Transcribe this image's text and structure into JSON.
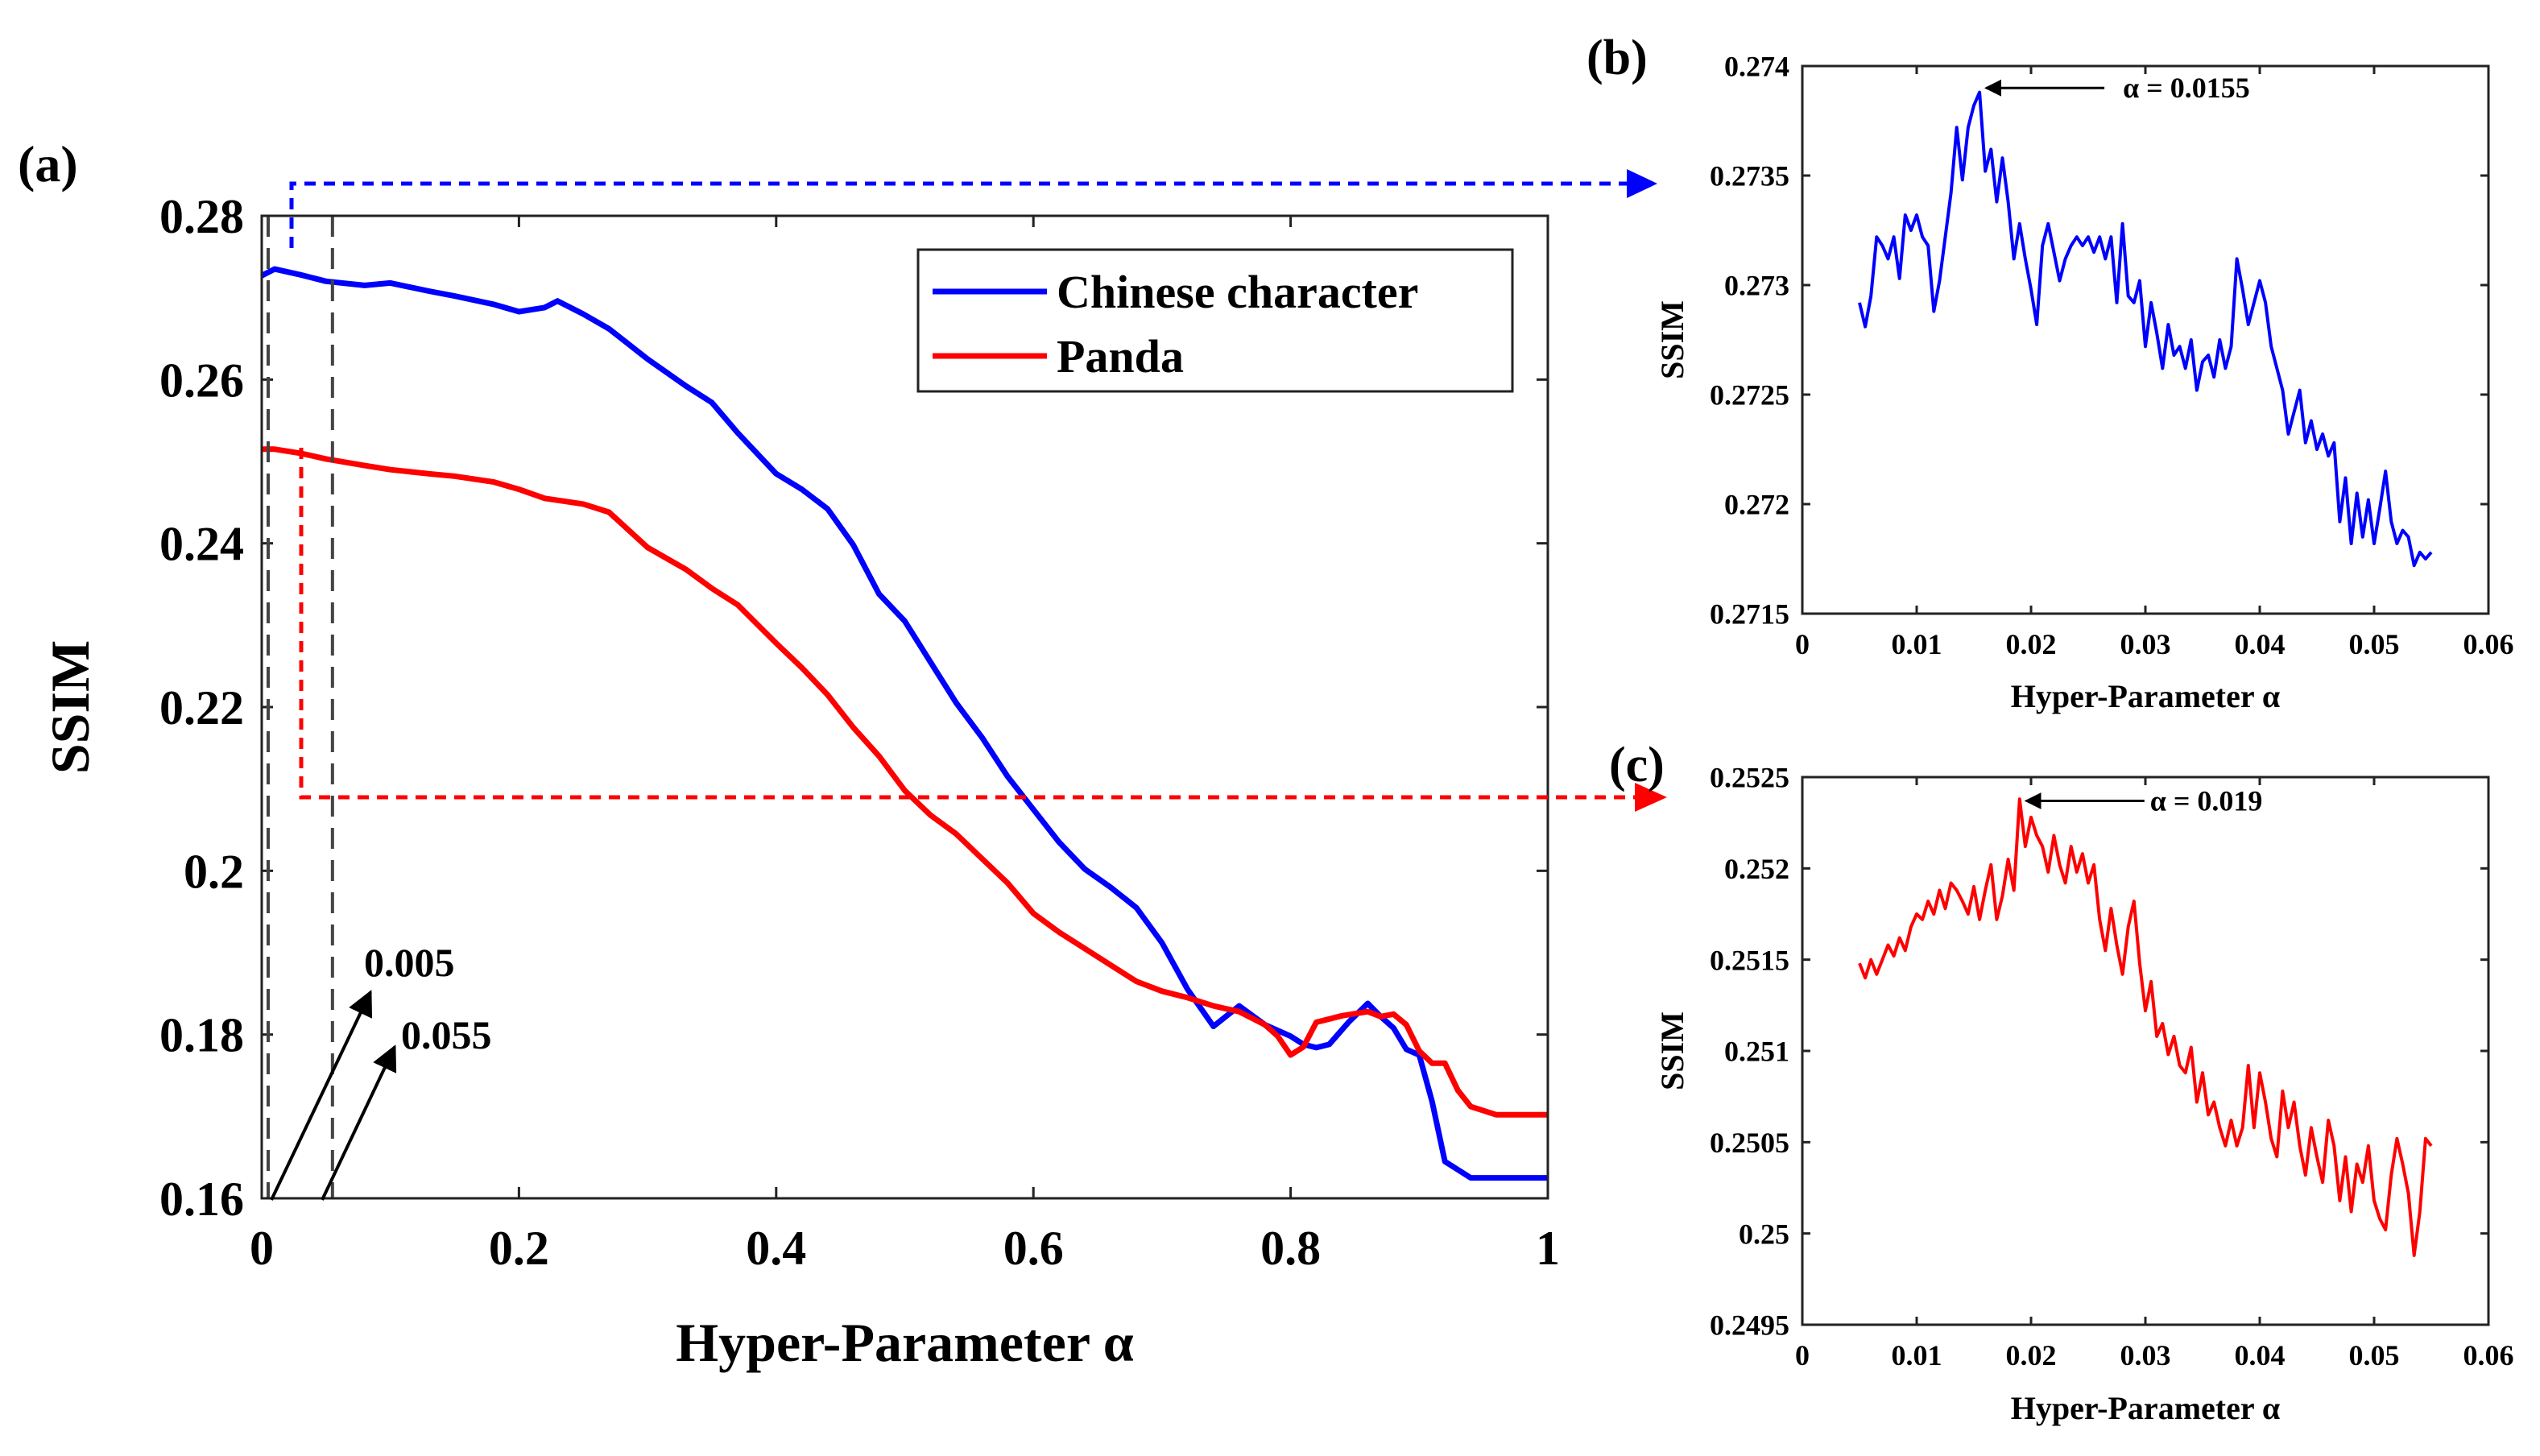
{
  "chart_data": [
    {
      "id": "a",
      "panel_label": "(a)",
      "type": "line",
      "title": "",
      "xlabel": "Hyper-Parameter α",
      "ylabel": "SSIM",
      "xlim": [
        0,
        1
      ],
      "ylim": [
        0.16,
        0.28
      ],
      "xticks": [
        0,
        0.2,
        0.4,
        0.6,
        0.8,
        1
      ],
      "xtick_labels": [
        "0",
        "0.2",
        "0.4",
        "0.6",
        "0.8",
        "1"
      ],
      "yticks": [
        0.16,
        0.18,
        0.2,
        0.22,
        0.24,
        0.26,
        0.28
      ],
      "ytick_labels": [
        "0.16",
        "0.18",
        "0.2",
        "0.22",
        "0.24",
        "0.26",
        "0.28"
      ],
      "grid": false,
      "legend_position": "top-right",
      "series": [
        {
          "name": "Chinese character",
          "color": "#0000ff",
          "x": [
            0,
            0.01,
            0.03,
            0.05,
            0.08,
            0.1,
            0.13,
            0.15,
            0.18,
            0.2,
            0.22,
            0.23,
            0.25,
            0.27,
            0.3,
            0.33,
            0.35,
            0.37,
            0.4,
            0.42,
            0.44,
            0.46,
            0.48,
            0.5,
            0.52,
            0.54,
            0.56,
            0.58,
            0.6,
            0.62,
            0.64,
            0.66,
            0.68,
            0.7,
            0.72,
            0.74,
            0.76,
            0.78,
            0.8,
            0.81,
            0.82,
            0.83,
            0.845,
            0.86,
            0.87,
            0.88,
            0.89,
            0.9,
            0.91,
            0.92,
            0.94,
            0.96,
            1.0
          ],
          "y": [
            0.2727,
            0.2735,
            0.2728,
            0.272,
            0.2715,
            0.2718,
            0.2708,
            0.2702,
            0.2692,
            0.2683,
            0.2688,
            0.2696,
            0.268,
            0.2662,
            0.2625,
            0.2592,
            0.2572,
            0.2535,
            0.2485,
            0.2466,
            0.2442,
            0.2398,
            0.2338,
            0.2305,
            0.2255,
            0.2205,
            0.2163,
            0.2115,
            0.2075,
            0.2035,
            0.2002,
            0.198,
            0.1955,
            0.1912,
            0.1855,
            0.181,
            0.1835,
            0.1812,
            0.1798,
            0.1788,
            0.1784,
            0.1788,
            0.1815,
            0.1838,
            0.1822,
            0.1808,
            0.1782,
            0.1775,
            0.1718,
            0.1645,
            0.1625,
            0.1625,
            0.1625
          ]
        },
        {
          "name": "Panda",
          "color": "#ff0000",
          "x": [
            0,
            0.01,
            0.03,
            0.05,
            0.08,
            0.1,
            0.13,
            0.15,
            0.18,
            0.2,
            0.22,
            0.25,
            0.27,
            0.3,
            0.33,
            0.35,
            0.37,
            0.4,
            0.42,
            0.44,
            0.46,
            0.48,
            0.5,
            0.52,
            0.54,
            0.56,
            0.58,
            0.6,
            0.62,
            0.64,
            0.66,
            0.68,
            0.7,
            0.72,
            0.74,
            0.76,
            0.78,
            0.79,
            0.8,
            0.81,
            0.82,
            0.84,
            0.86,
            0.87,
            0.88,
            0.89,
            0.9,
            0.91,
            0.92,
            0.93,
            0.94,
            0.96,
            1.0
          ],
          "y": [
            0.2515,
            0.2515,
            0.251,
            0.2503,
            0.2495,
            0.249,
            0.2485,
            0.2482,
            0.2475,
            0.2466,
            0.2455,
            0.2448,
            0.2438,
            0.2395,
            0.2368,
            0.2345,
            0.2325,
            0.2278,
            0.2248,
            0.2215,
            0.2175,
            0.214,
            0.2098,
            0.2068,
            0.2045,
            0.2015,
            0.1985,
            0.1948,
            0.1925,
            0.1905,
            0.1885,
            0.1865,
            0.1853,
            0.1845,
            0.1835,
            0.1828,
            0.1812,
            0.1798,
            0.1775,
            0.1785,
            0.1815,
            0.1823,
            0.1828,
            0.1822,
            0.1825,
            0.1812,
            0.178,
            0.1765,
            0.1765,
            0.1732,
            0.1712,
            0.1702,
            0.1702
          ]
        }
      ],
      "annotations": [
        {
          "text": "0.005",
          "x": 0.005
        },
        {
          "text": "0.055",
          "x": 0.055
        }
      ]
    },
    {
      "id": "b",
      "panel_label": "(b)",
      "type": "line",
      "xlabel": "Hyper-Parameter α",
      "ylabel": "SSIM",
      "xlim": [
        0,
        0.06
      ],
      "ylim": [
        0.2715,
        0.274
      ],
      "xticks": [
        0,
        0.01,
        0.02,
        0.03,
        0.04,
        0.05,
        0.06
      ],
      "xtick_labels": [
        "0",
        "0.01",
        "0.02",
        "0.03",
        "0.04",
        "0.05",
        "0.06"
      ],
      "yticks": [
        0.2715,
        0.272,
        0.2725,
        0.273,
        0.2735,
        0.274
      ],
      "ytick_labels": [
        "0.2715",
        "0.272",
        "0.2725",
        "0.273",
        "0.2735",
        "0.274"
      ],
      "grid": false,
      "series": [
        {
          "name": "Chinese character",
          "color": "#0000ff",
          "x": [
            0.005,
            0.0055,
            0.006,
            0.0065,
            0.007,
            0.0075,
            0.008,
            0.0085,
            0.009,
            0.0095,
            0.01,
            0.0105,
            0.011,
            0.0115,
            0.012,
            0.0125,
            0.013,
            0.0135,
            0.014,
            0.0145,
            0.015,
            0.0155,
            0.016,
            0.0165,
            0.017,
            0.0175,
            0.018,
            0.0185,
            0.019,
            0.0195,
            0.02,
            0.0205,
            0.021,
            0.0215,
            0.022,
            0.0225,
            0.023,
            0.0235,
            0.024,
            0.0245,
            0.025,
            0.0255,
            0.026,
            0.0265,
            0.027,
            0.0275,
            0.028,
            0.0285,
            0.029,
            0.0295,
            0.03,
            0.0305,
            0.031,
            0.0315,
            0.032,
            0.0325,
            0.033,
            0.0335,
            0.034,
            0.0345,
            0.035,
            0.0355,
            0.036,
            0.0365,
            0.037,
            0.0375,
            0.038,
            0.0385,
            0.039,
            0.0395,
            0.04,
            0.0405,
            0.041,
            0.0415,
            0.042,
            0.0425,
            0.043,
            0.0435,
            0.044,
            0.0445,
            0.045,
            0.0455,
            0.046,
            0.0465,
            0.047,
            0.0475,
            0.048,
            0.0485,
            0.049,
            0.0495,
            0.05,
            0.0505,
            0.051,
            0.0515,
            0.052,
            0.0525,
            0.053,
            0.0535,
            0.054,
            0.0545,
            0.055
          ],
          "y": [
            0.27292,
            0.27281,
            0.27295,
            0.27322,
            0.27318,
            0.27312,
            0.27322,
            0.27303,
            0.27332,
            0.27325,
            0.27332,
            0.27322,
            0.27318,
            0.27288,
            0.27302,
            0.27322,
            0.27342,
            0.27372,
            0.27348,
            0.27372,
            0.27382,
            0.27388,
            0.27352,
            0.27362,
            0.27338,
            0.27358,
            0.27338,
            0.27312,
            0.27328,
            0.27312,
            0.27298,
            0.27282,
            0.27318,
            0.27328,
            0.27315,
            0.27302,
            0.27312,
            0.27318,
            0.27322,
            0.27318,
            0.27322,
            0.27315,
            0.27322,
            0.27312,
            0.27322,
            0.27292,
            0.27328,
            0.27295,
            0.27292,
            0.27302,
            0.27272,
            0.27292,
            0.27278,
            0.27262,
            0.27282,
            0.27268,
            0.27272,
            0.27262,
            0.27275,
            0.27252,
            0.27265,
            0.27268,
            0.27258,
            0.27275,
            0.27262,
            0.27272,
            0.27312,
            0.27298,
            0.27282,
            0.27292,
            0.27302,
            0.27292,
            0.27272,
            0.27262,
            0.27252,
            0.27232,
            0.27242,
            0.27252,
            0.27228,
            0.27238,
            0.27225,
            0.27232,
            0.27222,
            0.27228,
            0.27192,
            0.27212,
            0.27182,
            0.27205,
            0.27185,
            0.27202,
            0.27182,
            0.27198,
            0.27215,
            0.27192,
            0.27182,
            0.27188,
            0.27185,
            0.27172,
            0.27178,
            0.27175,
            0.27178
          ]
        }
      ],
      "annotation": {
        "text": "α = 0.0155",
        "x": 0.0155,
        "y": 0.2739
      }
    },
    {
      "id": "c",
      "panel_label": "(c)",
      "type": "line",
      "xlabel": "Hyper-Parameter α",
      "ylabel": "SSIM",
      "xlim": [
        0,
        0.06
      ],
      "ylim": [
        0.2495,
        0.2525
      ],
      "xticks": [
        0,
        0.01,
        0.02,
        0.03,
        0.04,
        0.05,
        0.06
      ],
      "xtick_labels": [
        "0",
        "0.01",
        "0.02",
        "0.03",
        "0.04",
        "0.05",
        "0.06"
      ],
      "yticks": [
        0.2495,
        0.25,
        0.2505,
        0.251,
        0.2515,
        0.252,
        0.2525
      ],
      "ytick_labels": [
        "0.2495",
        "0.25",
        "0.2505",
        "0.251",
        "0.2515",
        "0.252",
        "0.2525"
      ],
      "grid": false,
      "series": [
        {
          "name": "Panda",
          "color": "#ff0000",
          "x": [
            0.005,
            0.0055,
            0.006,
            0.0065,
            0.007,
            0.0075,
            0.008,
            0.0085,
            0.009,
            0.0095,
            0.01,
            0.0105,
            0.011,
            0.0115,
            0.012,
            0.0125,
            0.013,
            0.0135,
            0.014,
            0.0145,
            0.015,
            0.0155,
            0.016,
            0.0165,
            0.017,
            0.0175,
            0.018,
            0.0185,
            0.019,
            0.0195,
            0.02,
            0.0205,
            0.021,
            0.0215,
            0.022,
            0.0225,
            0.023,
            0.0235,
            0.024,
            0.0245,
            0.025,
            0.0255,
            0.026,
            0.0265,
            0.027,
            0.0275,
            0.028,
            0.0285,
            0.029,
            0.0295,
            0.03,
            0.0305,
            0.031,
            0.0315,
            0.032,
            0.0325,
            0.033,
            0.0335,
            0.034,
            0.0345,
            0.035,
            0.0355,
            0.036,
            0.0365,
            0.037,
            0.0375,
            0.038,
            0.0385,
            0.039,
            0.0395,
            0.04,
            0.0405,
            0.041,
            0.0415,
            0.042,
            0.0425,
            0.043,
            0.0435,
            0.044,
            0.0445,
            0.045,
            0.0455,
            0.046,
            0.0465,
            0.047,
            0.0475,
            0.048,
            0.0485,
            0.049,
            0.0495,
            0.05,
            0.0505,
            0.051,
            0.0515,
            0.052,
            0.0525,
            0.053,
            0.0535,
            0.054,
            0.0545,
            0.055
          ],
          "y": [
            0.25148,
            0.2514,
            0.2515,
            0.25142,
            0.2515,
            0.25158,
            0.25152,
            0.25162,
            0.25155,
            0.25168,
            0.25175,
            0.25172,
            0.25182,
            0.25175,
            0.25188,
            0.25178,
            0.25192,
            0.25188,
            0.25182,
            0.25175,
            0.2519,
            0.25172,
            0.25188,
            0.25202,
            0.25172,
            0.25185,
            0.25205,
            0.25188,
            0.25238,
            0.25212,
            0.25228,
            0.25218,
            0.25212,
            0.25198,
            0.25218,
            0.25202,
            0.25192,
            0.25212,
            0.25198,
            0.25208,
            0.25192,
            0.25202,
            0.25172,
            0.25155,
            0.25178,
            0.25158,
            0.25142,
            0.25168,
            0.25182,
            0.25148,
            0.25122,
            0.25138,
            0.25108,
            0.25115,
            0.25098,
            0.25108,
            0.25092,
            0.25088,
            0.25102,
            0.25072,
            0.25088,
            0.25065,
            0.25072,
            0.25058,
            0.25048,
            0.25062,
            0.25048,
            0.25058,
            0.25092,
            0.25058,
            0.25088,
            0.25072,
            0.25052,
            0.25042,
            0.25078,
            0.25058,
            0.25072,
            0.25048,
            0.25032,
            0.25058,
            0.25042,
            0.25028,
            0.25062,
            0.25048,
            0.25018,
            0.25042,
            0.25012,
            0.25038,
            0.25028,
            0.25048,
            0.25018,
            0.25008,
            0.25002,
            0.25032,
            0.25052,
            0.25038,
            0.25022,
            0.24988,
            0.25012,
            0.25052,
            0.25048
          ]
        }
      ],
      "annotation": {
        "text": "α = 0.019",
        "x": 0.019,
        "y": 0.25237
      }
    }
  ],
  "legend": {
    "items": [
      {
        "label": "Chinese character",
        "color": "#0000ff"
      },
      {
        "label": "Panda",
        "color": "#ff0000"
      }
    ]
  },
  "colors": {
    "blue": "#0000ff",
    "red": "#ff0000",
    "axis": "#222222",
    "dash": "#444444"
  }
}
